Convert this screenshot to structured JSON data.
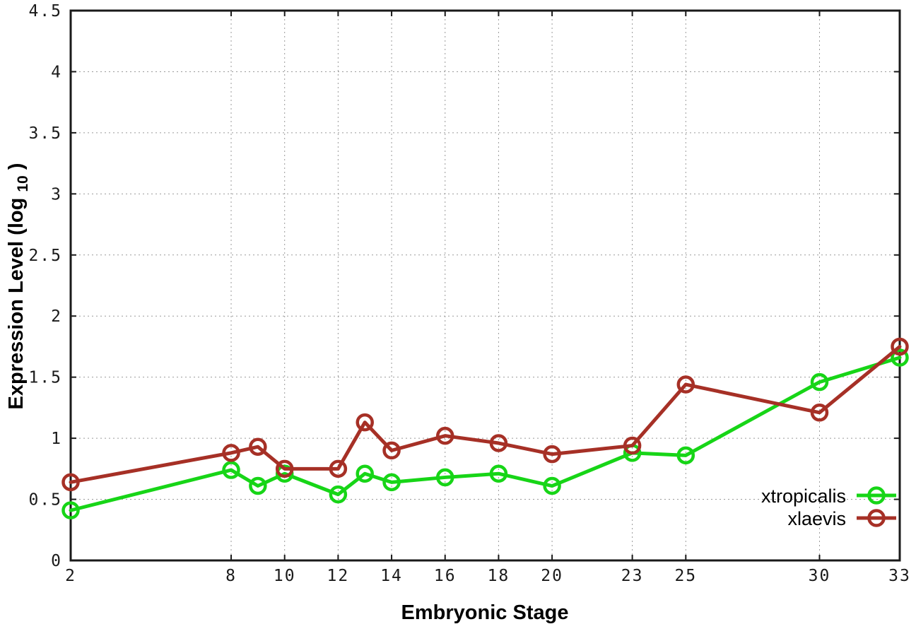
{
  "labels": {
    "ylabel_prefix": "Expression Level (log",
    "ylabel_sub": "10",
    "ylabel_suffix": ")"
  },
  "chart_data": {
    "type": "line",
    "title": "",
    "xlabel": "Embryonic Stage",
    "ylabel": "Expression Level (log10)",
    "xlim": [
      2,
      33
    ],
    "ylim": [
      0,
      4.5
    ],
    "xticks": [
      2,
      8,
      10,
      12,
      14,
      16,
      18,
      20,
      23,
      25,
      30,
      33
    ],
    "yticks": [
      0,
      0.5,
      1,
      1.5,
      2,
      2.5,
      3,
      3.5,
      4,
      4.5
    ],
    "grid": true,
    "legend_position": "inside-bottom-right",
    "x": [
      2,
      8,
      9,
      10,
      12,
      13,
      14,
      16,
      18,
      20,
      23,
      25,
      30,
      33
    ],
    "series": [
      {
        "name": "xtropicalis",
        "color": "#17d517",
        "marker": "open-circle",
        "values": [
          0.41,
          0.74,
          0.61,
          0.71,
          0.54,
          0.71,
          0.64,
          0.68,
          0.71,
          0.61,
          0.88,
          0.86,
          1.46,
          1.66
        ]
      },
      {
        "name": "xlaevis",
        "color": "#a63026",
        "marker": "open-circle",
        "values": [
          0.64,
          0.88,
          0.93,
          0.75,
          0.75,
          1.13,
          0.9,
          1.02,
          0.96,
          0.87,
          0.94,
          1.44,
          1.21,
          1.75
        ]
      }
    ],
    "axis_color": "#1a1a1a",
    "grid_color": "#9a9a9a"
  }
}
